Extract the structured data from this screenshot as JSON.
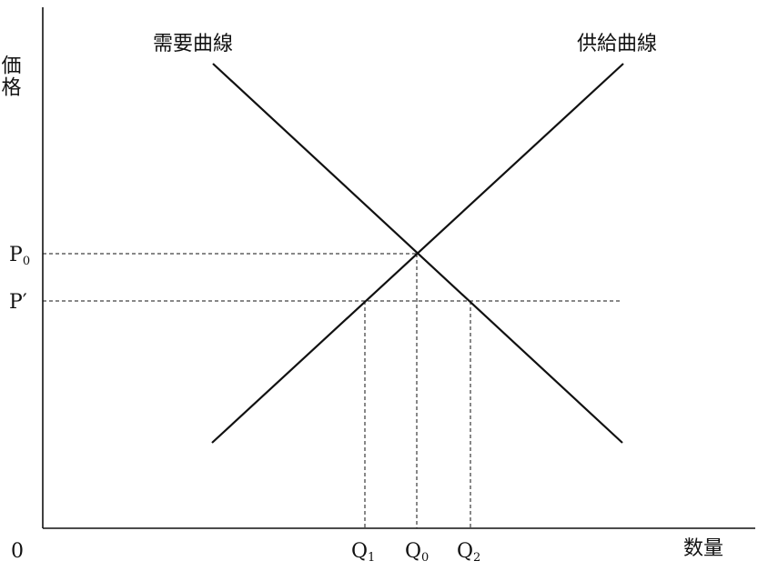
{
  "chart_data": {
    "type": "line",
    "title": "",
    "axes": {
      "y_label": "価格",
      "x_label": "数量",
      "origin_label": "0"
    },
    "curves": [
      {
        "name": "需要曲線",
        "slope": "downward"
      },
      {
        "name": "供給曲線",
        "slope": "upward"
      }
    ],
    "price_levels": [
      {
        "id": "p0",
        "label": "P",
        "sub": "0"
      },
      {
        "id": "p_prime",
        "label": "P′",
        "sub": ""
      }
    ],
    "quantity_levels": [
      {
        "id": "q1",
        "label": "Q",
        "sub": "1"
      },
      {
        "id": "q0",
        "label": "Q",
        "sub": "0"
      },
      {
        "id": "q2",
        "label": "Q",
        "sub": "2"
      }
    ],
    "equilibrium": {
      "price": "p0",
      "quantity": "q0"
    },
    "grid": false,
    "legend": "none"
  }
}
